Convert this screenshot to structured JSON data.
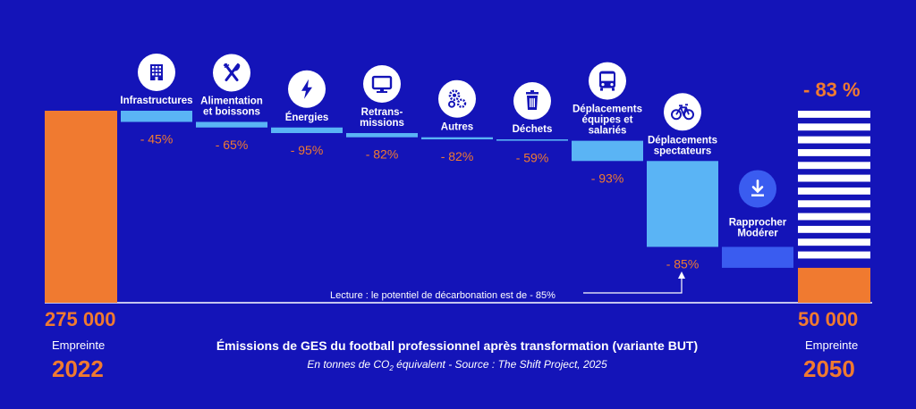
{
  "chart_data": {
    "type": "waterfall",
    "title": "Émissions de GES du football professionnel après transformation (variante BUT)",
    "subtitle_prefix": "En tonnes de CO",
    "subtitle_sub": "2",
    "subtitle_suffix": " équivalent - Source : The Shift Project, 2025",
    "start": {
      "value": 275000,
      "label": "275 000",
      "caption": "Empreinte",
      "year": "2022"
    },
    "end": {
      "value": 50000,
      "label": "50 000",
      "caption": "Empreinte",
      "year": "2050"
    },
    "total_reduction": "- 83 %",
    "steps": [
      {
        "lines": [
          "Infrastructures"
        ],
        "reduction": 16000,
        "pct": "- 45%",
        "icon": "building-icon"
      },
      {
        "lines": [
          "Alimentation",
          "et boissons"
        ],
        "reduction": 8000,
        "pct": "- 65%",
        "icon": "fork-knife-icon"
      },
      {
        "lines": [
          "Énergies"
        ],
        "reduction": 8000,
        "pct": "- 95%",
        "icon": "lightning-icon"
      },
      {
        "lines": [
          "Retrans-",
          "missions"
        ],
        "reduction": 6000,
        "pct": "- 82%",
        "icon": "monitor-icon"
      },
      {
        "lines": [
          "Autres"
        ],
        "reduction": 3000,
        "pct": "- 82%",
        "icon": "gears-icon"
      },
      {
        "lines": [
          "Déchets"
        ],
        "reduction": 2000,
        "pct": "- 59%",
        "icon": "trash-icon"
      },
      {
        "lines": [
          "Déplacements",
          "équipes et",
          "salariés"
        ],
        "reduction": 29000,
        "pct": "- 93%",
        "icon": "bus-icon"
      },
      {
        "lines": [
          "Déplacements",
          "spectateurs"
        ],
        "reduction": 123000,
        "pct": "- 85%",
        "icon": "bicycle-icon"
      },
      {
        "lines": [
          "Rapprocher",
          "Modérer"
        ],
        "reduction": 30000,
        "pct": "",
        "icon": "download-icon"
      }
    ],
    "annotation": "Lecture : le potentiel de décarbonation est de - 85%"
  }
}
